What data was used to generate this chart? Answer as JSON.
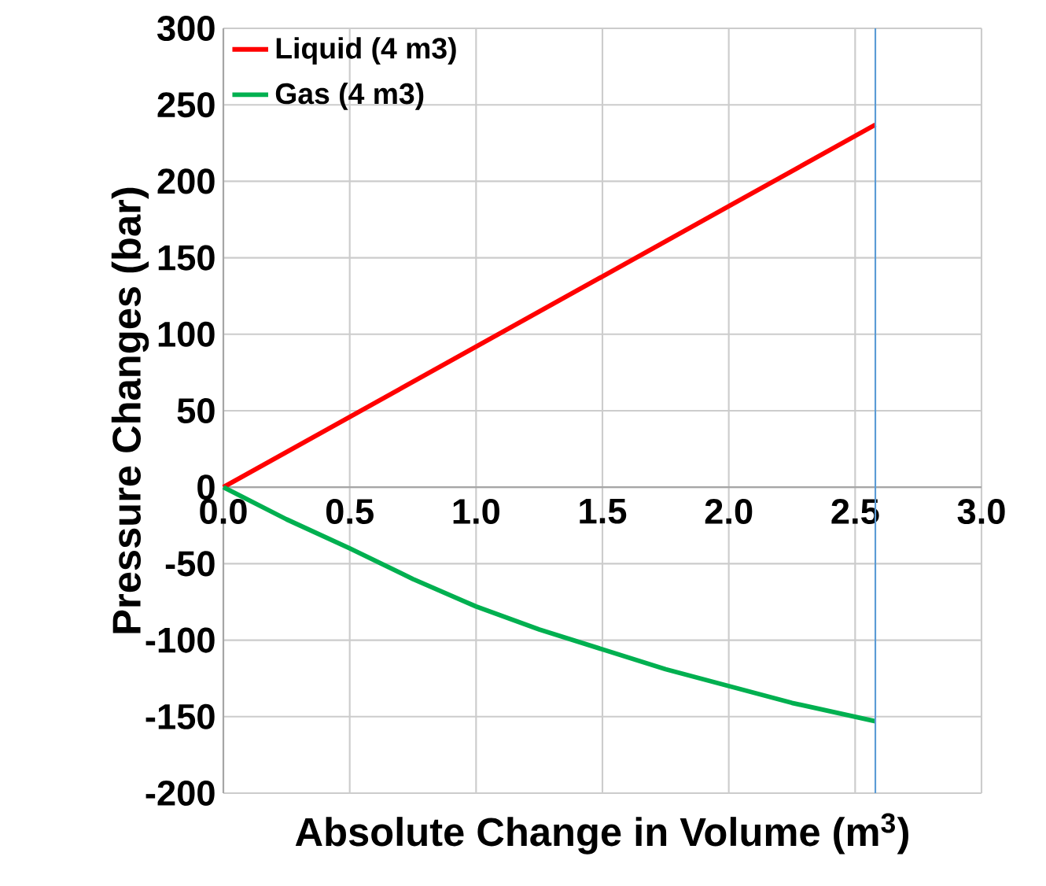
{
  "chart_data": {
    "type": "line",
    "xlabel": "Absolute Change in Volume (m$^{3}$)",
    "ylabel": "Pressure Changes (bar)",
    "series": [
      {
        "name": "Liquid (4 m3)",
        "color": "#ff0000",
        "x": [
          0,
          2.58
        ],
        "values": [
          0,
          237
        ]
      },
      {
        "name": "Gas (4 m3)",
        "color": "#00b050",
        "x": [
          0,
          0.25,
          0.5,
          0.75,
          1.0,
          1.25,
          1.5,
          1.75,
          2.0,
          2.25,
          2.58
        ],
        "values": [
          0,
          -21,
          -40,
          -60,
          -78,
          -93,
          -106,
          -119,
          -130,
          -141,
          -153
        ]
      }
    ],
    "xlim": [
      0,
      3
    ],
    "ylim": [
      -200,
      300
    ],
    "xticks": [
      {
        "value": 0,
        "label": "0.0"
      },
      {
        "value": 0.5,
        "label": "0.5"
      },
      {
        "value": 1,
        "label": "1.0"
      },
      {
        "value": 1.5,
        "label": "1.5"
      },
      {
        "value": 2,
        "label": "2.0"
      },
      {
        "value": 2.5,
        "label": "2.5"
      },
      {
        "value": 3,
        "label": "3.0"
      }
    ],
    "yticks": [
      -200,
      -150,
      -100,
      -50,
      0,
      50,
      100,
      150,
      200,
      250,
      300
    ],
    "grid": true,
    "legend": "top left",
    "ref_lines": [
      {
        "axis": "x",
        "value": 2.58,
        "color": "#5b9bd5"
      }
    ]
  }
}
